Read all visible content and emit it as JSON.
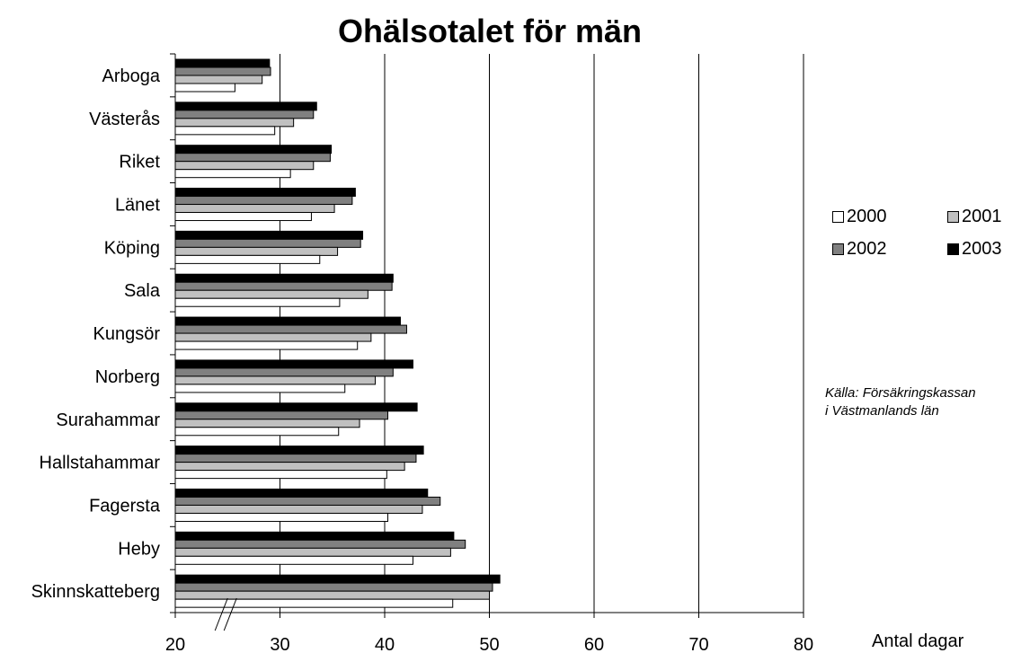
{
  "chart_data": {
    "type": "bar",
    "orientation": "horizontal",
    "title": "Ohälsotalet för män",
    "xlabel": "Antal dagar",
    "xlim": [
      20,
      80
    ],
    "xticks": [
      "20",
      "30",
      "40",
      "50",
      "60",
      "70",
      "80"
    ],
    "axis_break": true,
    "grid": "vertical",
    "legend_position": "right",
    "categories": [
      "Arboga",
      "Västerås",
      "Riket",
      "Länet",
      "Köping",
      "Sala",
      "Kungsör",
      "Norberg",
      "Surahammar",
      "Hallstahammar",
      "Fagersta",
      "Heby",
      "Skinnskatteberg"
    ],
    "series": [
      {
        "name": "2000",
        "color": "#ffffff",
        "values": [
          25.7,
          29.5,
          31.0,
          33.0,
          33.8,
          35.7,
          37.4,
          36.2,
          35.6,
          40.2,
          40.3,
          42.7,
          46.5
        ]
      },
      {
        "name": "2001",
        "color": "#c0c0c0",
        "values": [
          28.3,
          31.3,
          33.2,
          35.2,
          35.5,
          38.4,
          38.7,
          39.1,
          37.6,
          41.9,
          43.6,
          46.3,
          50.0
        ]
      },
      {
        "name": "2002",
        "color": "#808080",
        "values": [
          29.1,
          33.2,
          34.8,
          36.9,
          37.7,
          40.7,
          42.1,
          40.8,
          40.3,
          43.0,
          45.3,
          47.7,
          50.3
        ]
      },
      {
        "name": "2003",
        "color": "#000000",
        "values": [
          29.0,
          33.5,
          34.9,
          37.2,
          37.9,
          40.8,
          41.5,
          42.7,
          43.1,
          43.7,
          44.1,
          46.6,
          51.0
        ]
      }
    ]
  },
  "source_lines": [
    "Källa: Försäkringskassan",
    "i Västmanlands län"
  ]
}
